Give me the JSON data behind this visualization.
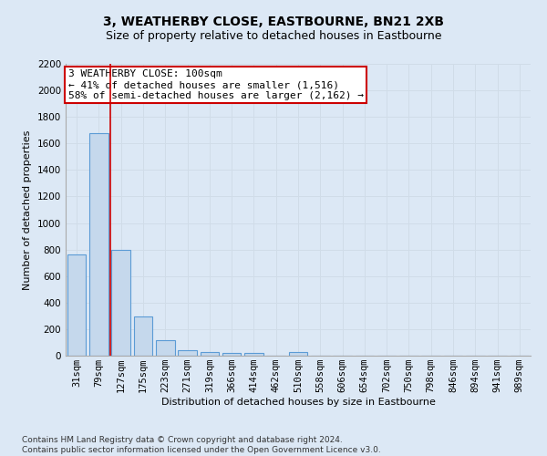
{
  "title": "3, WEATHERBY CLOSE, EASTBOURNE, BN21 2XB",
  "subtitle": "Size of property relative to detached houses in Eastbourne",
  "xlabel": "Distribution of detached houses by size in Eastbourne",
  "ylabel": "Number of detached properties",
  "categories": [
    "31sqm",
    "79sqm",
    "127sqm",
    "175sqm",
    "223sqm",
    "271sqm",
    "319sqm",
    "366sqm",
    "414sqm",
    "462sqm",
    "510sqm",
    "558sqm",
    "606sqm",
    "654sqm",
    "702sqm",
    "750sqm",
    "798sqm",
    "846sqm",
    "894sqm",
    "941sqm",
    "989sqm"
  ],
  "values": [
    760,
    1680,
    800,
    295,
    115,
    42,
    30,
    22,
    18,
    0,
    30,
    0,
    0,
    0,
    0,
    0,
    0,
    0,
    0,
    0,
    0
  ],
  "bar_color": "#c5d8ec",
  "bar_edge_color": "#5b9bd5",
  "red_line_x": 1.5,
  "annotation_text": "3 WEATHERBY CLOSE: 100sqm\n← 41% of detached houses are smaller (1,516)\n58% of semi-detached houses are larger (2,162) →",
  "annotation_box_color": "#ffffff",
  "annotation_box_edge_color": "#cc0000",
  "ylim": [
    0,
    2200
  ],
  "yticks": [
    0,
    200,
    400,
    600,
    800,
    1000,
    1200,
    1400,
    1600,
    1800,
    2000,
    2200
  ],
  "grid_color": "#d0dce8",
  "background_color": "#dce8f5",
  "footer_text": "Contains HM Land Registry data © Crown copyright and database right 2024.\nContains public sector information licensed under the Open Government Licence v3.0.",
  "title_fontsize": 10,
  "subtitle_fontsize": 9,
  "axis_label_fontsize": 8,
  "tick_fontsize": 7.5,
  "annotation_fontsize": 8,
  "footer_fontsize": 6.5
}
